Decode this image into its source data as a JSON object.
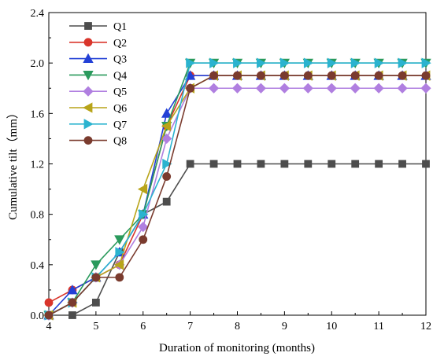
{
  "chart_data": {
    "type": "line",
    "xlabel": "Duration of monitoring (months)",
    "ylabel": "Cumulative tilt（mm）",
    "xlim": [
      4,
      12
    ],
    "ylim": [
      0,
      2.4
    ],
    "xticks": [
      "4",
      "5",
      "6",
      "7",
      "8",
      "9",
      "10",
      "11",
      "12"
    ],
    "yticks": [
      "0.0",
      "0.4",
      "0.8",
      "1.2",
      "1.6",
      "2.0",
      "2.4"
    ],
    "grid": false,
    "legend_position": "top-left",
    "x": [
      4,
      4.5,
      5,
      5.5,
      6,
      6.5,
      7,
      7.5,
      8,
      8.5,
      9,
      9.5,
      10,
      10.5,
      11,
      11.5,
      12
    ],
    "series": [
      {
        "name": "Q1",
        "color": "#4d4d4d",
        "marker": "square",
        "values": [
          0.0,
          0.0,
          0.1,
          0.5,
          0.8,
          0.9,
          1.2,
          1.2,
          1.2,
          1.2,
          1.2,
          1.2,
          1.2,
          1.2,
          1.2,
          1.2,
          1.2
        ]
      },
      {
        "name": "Q2",
        "color": "#d9352b",
        "marker": "circle",
        "values": [
          0.1,
          0.2,
          0.3,
          0.4,
          0.8,
          1.5,
          1.9,
          1.9,
          1.9,
          1.9,
          1.9,
          1.9,
          1.9,
          1.9,
          1.9,
          1.9,
          1.9
        ]
      },
      {
        "name": "Q3",
        "color": "#2340d6",
        "marker": "triangle-up",
        "values": [
          0.0,
          0.2,
          0.3,
          0.5,
          0.8,
          1.6,
          1.9,
          1.9,
          1.9,
          1.9,
          1.9,
          1.9,
          1.9,
          1.9,
          1.9,
          1.9,
          1.9
        ]
      },
      {
        "name": "Q4",
        "color": "#2a9a5c",
        "marker": "triangle-down",
        "values": [
          0.0,
          0.1,
          0.4,
          0.6,
          0.8,
          1.5,
          2.0,
          2.0,
          2.0,
          2.0,
          2.0,
          2.0,
          2.0,
          2.0,
          2.0,
          2.0,
          2.0
        ]
      },
      {
        "name": "Q5",
        "color": "#b07fe0",
        "marker": "diamond",
        "values": [
          0.0,
          0.1,
          0.3,
          0.4,
          0.7,
          1.4,
          1.8,
          1.8,
          1.8,
          1.8,
          1.8,
          1.8,
          1.8,
          1.8,
          1.8,
          1.8,
          1.8
        ]
      },
      {
        "name": "Q6",
        "color": "#b8a419",
        "marker": "triangle-left",
        "values": [
          0.0,
          0.1,
          0.3,
          0.4,
          1.0,
          1.5,
          1.8,
          1.9,
          1.9,
          1.9,
          1.9,
          1.9,
          1.9,
          1.9,
          1.9,
          1.9,
          1.9
        ]
      },
      {
        "name": "Q7",
        "color": "#2bb3cf",
        "marker": "triangle-right",
        "values": [
          0.0,
          0.1,
          0.3,
          0.5,
          0.8,
          1.2,
          2.0,
          2.0,
          2.0,
          2.0,
          2.0,
          2.0,
          2.0,
          2.0,
          2.0,
          2.0,
          2.0
        ]
      },
      {
        "name": "Q8",
        "color": "#7a3b2e",
        "marker": "circle",
        "values": [
          0.0,
          0.1,
          0.3,
          0.3,
          0.6,
          1.1,
          1.8,
          1.9,
          1.9,
          1.9,
          1.9,
          1.9,
          1.9,
          1.9,
          1.9,
          1.9,
          1.9
        ]
      }
    ]
  }
}
